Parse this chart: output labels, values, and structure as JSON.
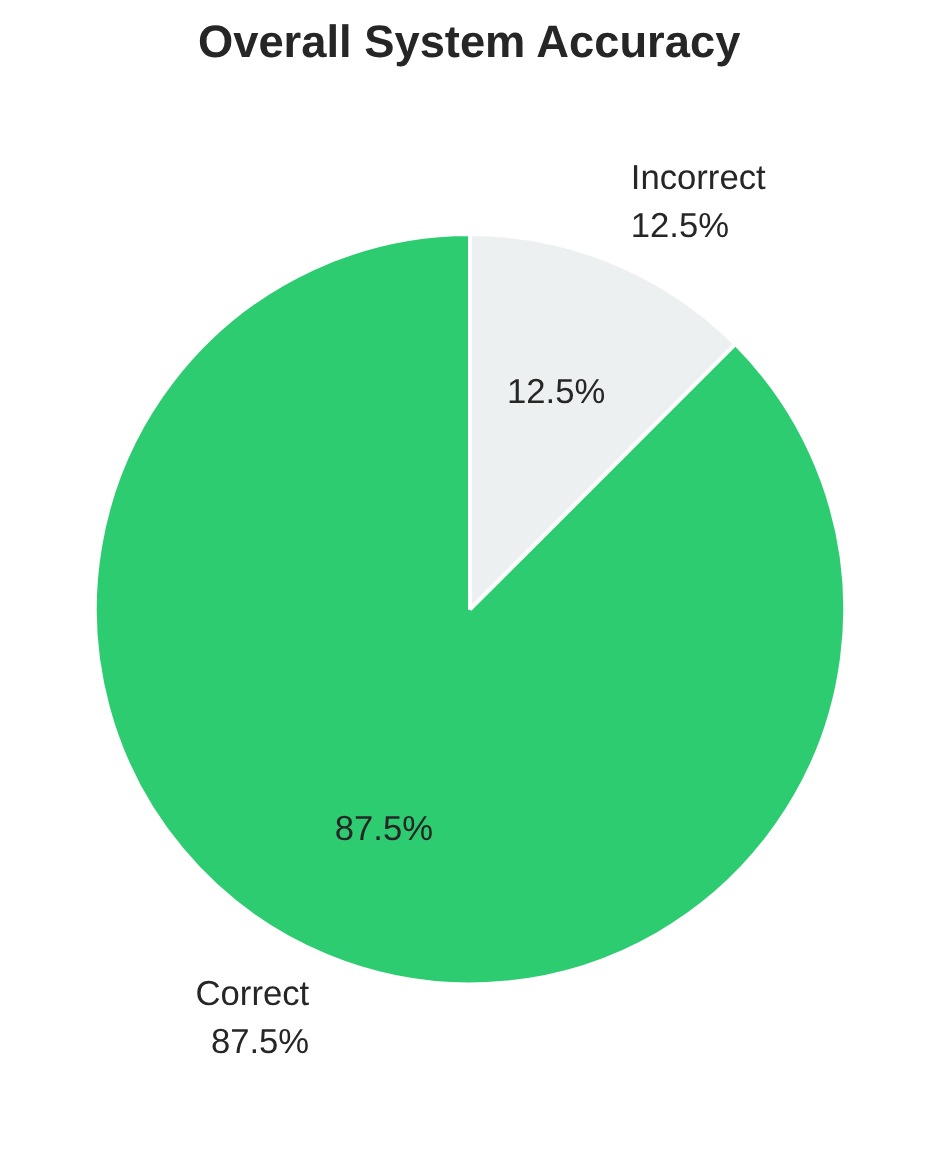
{
  "chart_data": {
    "type": "pie",
    "title": "Overall System Accuracy",
    "categories": [
      "Correct",
      "Incorrect"
    ],
    "values": [
      87.5,
      12.5
    ],
    "colors": [
      "#2ecc71",
      "#ecf0f1"
    ],
    "value_labels": [
      "87.5%",
      "12.5%"
    ]
  }
}
